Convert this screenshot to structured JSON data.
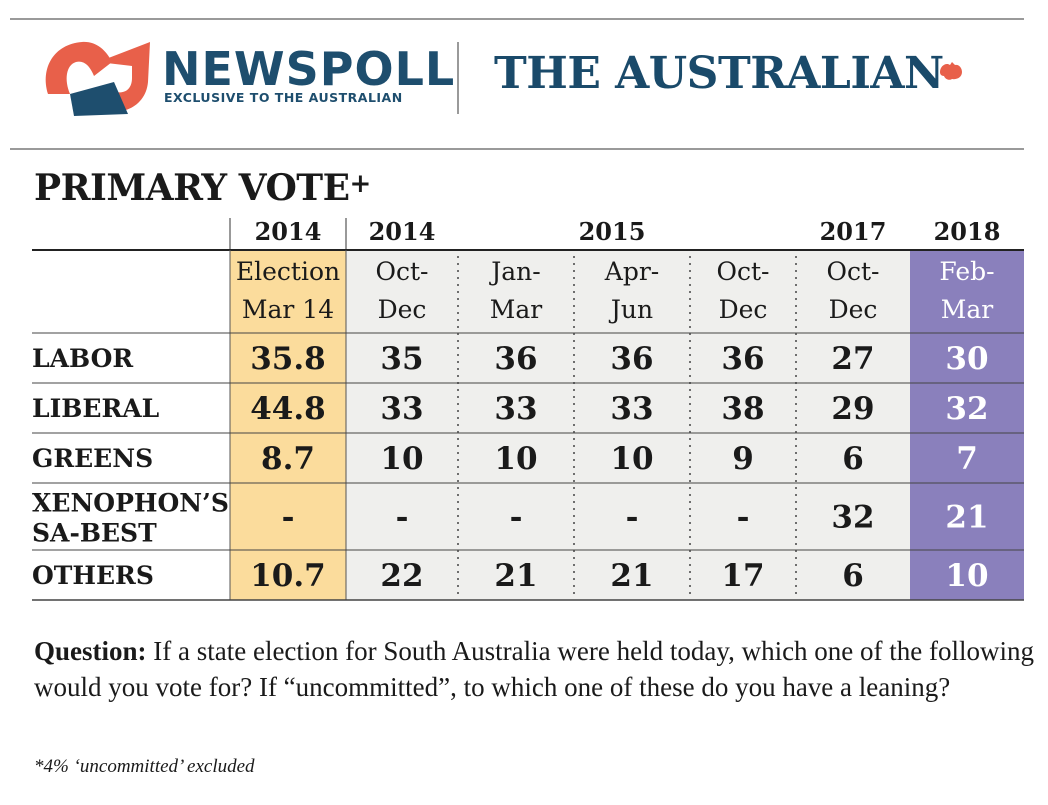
{
  "header": {
    "newspoll_name": "NEWSPOLL",
    "newspoll_tagline": "EXCLUSIVE TO THE AUSTRALIAN",
    "publication": "THE AUSTRALIAN",
    "colors": {
      "newspoll_red": "#e8604a",
      "newspoll_navy": "#1e4e6e",
      "australian_blue": "#1a4a6a"
    }
  },
  "chart_data": {
    "type": "table",
    "title": "PRIMARY VOTE",
    "title_mark": "+",
    "year_groups": [
      {
        "label": "2014",
        "span": 1
      },
      {
        "label": "2014",
        "span": 1
      },
      {
        "label": "2015",
        "span": 3
      },
      {
        "label": "2017",
        "span": 1
      },
      {
        "label": "2018",
        "span": 1
      }
    ],
    "columns": [
      {
        "line1": "Election",
        "line2": "Mar 14"
      },
      {
        "line1": "Oct-",
        "line2": "Dec"
      },
      {
        "line1": "Jan-",
        "line2": "Mar"
      },
      {
        "line1": "Apr-",
        "line2": "Jun"
      },
      {
        "line1": "Oct-",
        "line2": "Dec"
      },
      {
        "line1": "Oct-",
        "line2": "Dec"
      },
      {
        "line1": "Feb-",
        "line2": "Mar"
      }
    ],
    "rows": [
      {
        "label": [
          "LABOR"
        ],
        "values": [
          "35.8",
          "35",
          "36",
          "36",
          "36",
          "27",
          "30"
        ]
      },
      {
        "label": [
          "LIBERAL"
        ],
        "values": [
          "44.8",
          "33",
          "33",
          "33",
          "38",
          "29",
          "32"
        ]
      },
      {
        "label": [
          "GREENS"
        ],
        "values": [
          "8.7",
          "10",
          "10",
          "10",
          "9",
          "6",
          "7"
        ]
      },
      {
        "label": [
          "XENOPHON’S",
          "SA-BEST"
        ],
        "values": [
          "-",
          "-",
          "-",
          "-",
          "-",
          "32",
          "21"
        ]
      },
      {
        "label": [
          "OTHERS"
        ],
        "values": [
          "10.7",
          "22",
          "21",
          "21",
          "17",
          "6",
          "10"
        ]
      }
    ],
    "colors": {
      "election_column": "#fbdc9c",
      "latest_column": "#8a80bc",
      "body": "#efefed"
    }
  },
  "question": {
    "label": "Question:",
    "text": " If a state election for South Australia were held today, which one of the following would you vote for? If “uncommitted”, to which one of these do you have a leaning?"
  },
  "footnote": "*4% ‘uncommitted’ excluded"
}
